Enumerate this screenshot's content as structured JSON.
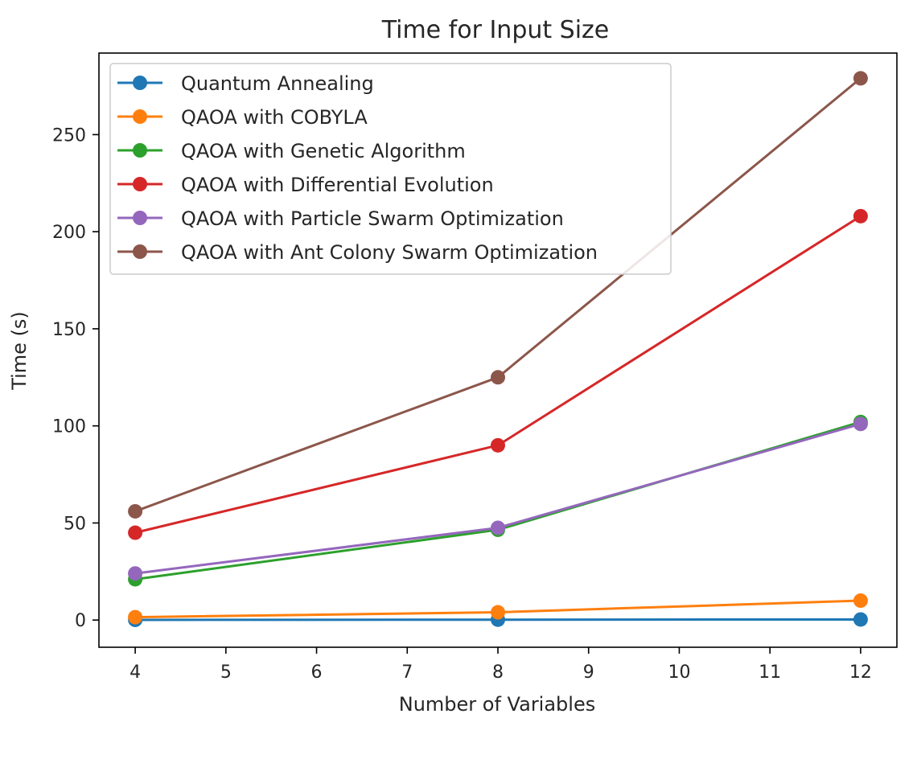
{
  "chart_data": {
    "type": "line",
    "title": "Time for Input Size",
    "xlabel": "Number of Variables",
    "ylabel": "Time (s)",
    "xlim": [
      3.6,
      12.4
    ],
    "ylim": [
      -14,
      292
    ],
    "xticks": [
      4,
      5,
      6,
      7,
      8,
      9,
      10,
      11,
      12
    ],
    "yticks": [
      0,
      50,
      100,
      150,
      200,
      250
    ],
    "grid": false,
    "legend_position": "top-left",
    "x": [
      4,
      8,
      12
    ],
    "series": [
      {
        "name": "Quantum Annealing",
        "color": "#1f77b4",
        "values": [
          0.1,
          0.2,
          0.3
        ]
      },
      {
        "name": "QAOA with COBYLA",
        "color": "#ff7f0e",
        "values": [
          1.5,
          4,
          10
        ]
      },
      {
        "name": "QAOA with Genetic Algorithm",
        "color": "#2ca02c",
        "values": [
          21,
          46.5,
          102
        ]
      },
      {
        "name": "QAOA with Differential Evolution",
        "color": "#d62728",
        "values": [
          45,
          90,
          208
        ]
      },
      {
        "name": "QAOA with Particle Swarm Optimization",
        "color": "#9467bd",
        "values": [
          24,
          47.5,
          101
        ]
      },
      {
        "name": "QAOA with Ant Colony Swarm Optimization",
        "color": "#8c564b",
        "values": [
          56,
          125,
          279
        ]
      }
    ]
  }
}
